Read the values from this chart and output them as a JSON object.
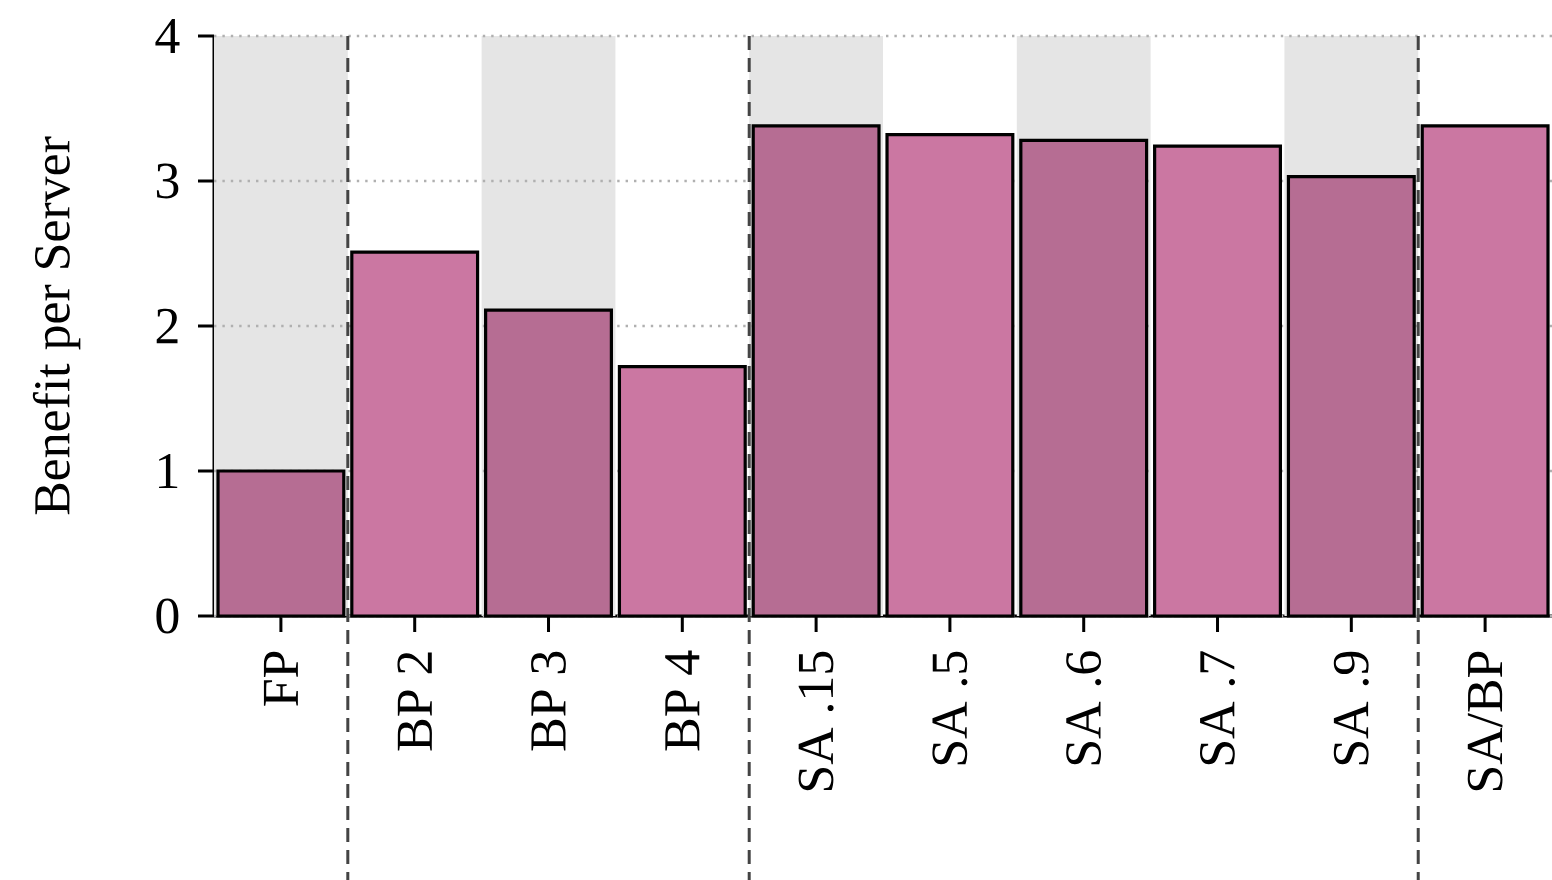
{
  "chart_data": {
    "type": "bar",
    "ylabel": "Benefit per Server",
    "categories": [
      "FP",
      "BP 2",
      "BP 3",
      "BP 4",
      "SA .15",
      "SA .5",
      "SA .6",
      "SA .7",
      "SA .9",
      "SA/BP"
    ],
    "values": [
      1.0,
      2.51,
      2.11,
      1.72,
      3.38,
      3.32,
      3.28,
      3.24,
      3.03,
      3.38
    ],
    "colors": [
      "#b66d93",
      "#cb77a2",
      "#b66d93",
      "#cb77a2",
      "#b66d93",
      "#cb77a2",
      "#b66d93",
      "#cb77a2",
      "#b66d93",
      "#cb77a2"
    ],
    "ylim": [
      0,
      4
    ],
    "yticks": [
      0,
      1,
      2,
      3,
      4
    ],
    "grid": "y"
  }
}
